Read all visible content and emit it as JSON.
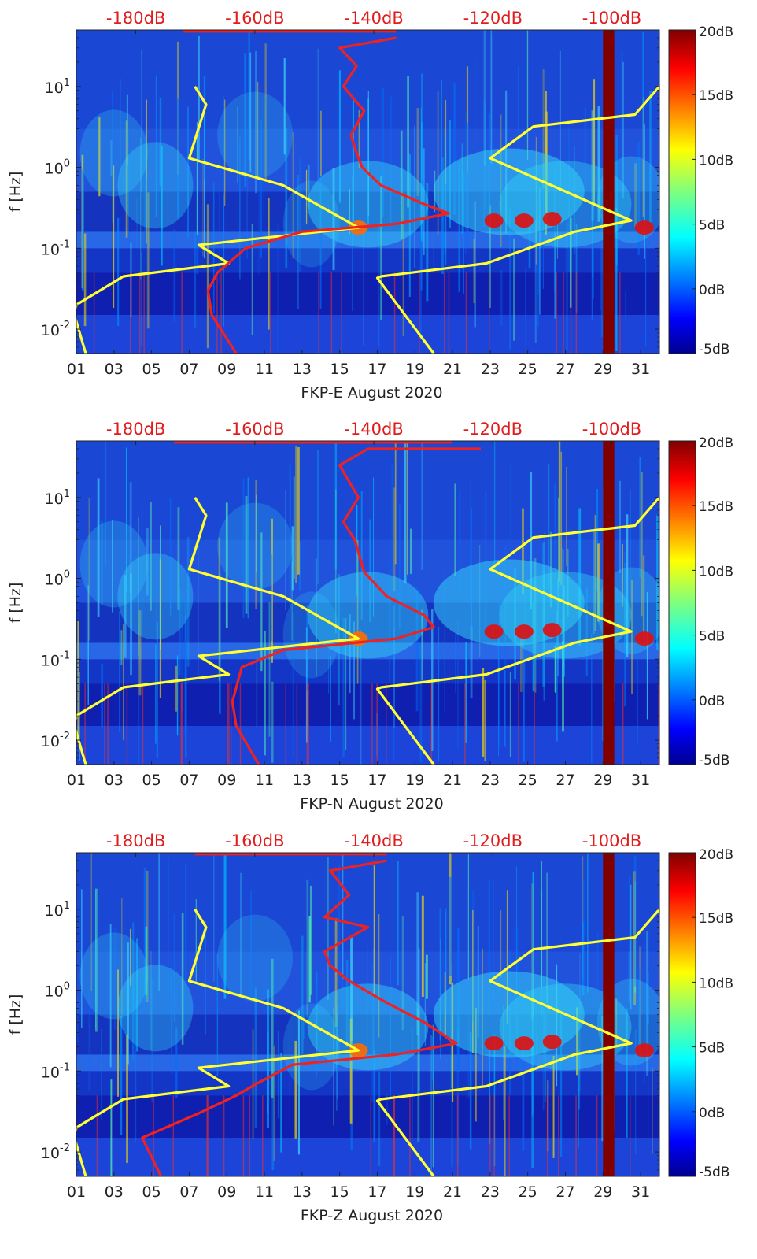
{
  "chart_data": [
    {
      "type": "heatmap",
      "title": "",
      "xlabel": "FKP-E August 2020",
      "ylabel": "f [Hz]",
      "x_ticks": [
        "01",
        "03",
        "05",
        "07",
        "09",
        "11",
        "13",
        "15",
        "17",
        "19",
        "21",
        "23",
        "25",
        "27",
        "29",
        "31"
      ],
      "x_range_days": [
        1,
        32
      ],
      "y_scale": "log",
      "y_ticks": [
        "10^-2",
        "10^-1",
        "10^0",
        "10^1"
      ],
      "y_range_hz": [
        0.005,
        50
      ],
      "top_axis_ticks": [
        "-180dB",
        "-160dB",
        "-140dB",
        "-120dB",
        "-100dB"
      ],
      "top_axis_range_db": [
        -190,
        -92
      ],
      "colorbar": {
        "label_ticks": [
          "20dB",
          "15dB",
          "10dB",
          "5dB",
          "0dB",
          "-5dB"
        ],
        "range": [
          -5,
          20
        ],
        "colormap": "jet"
      },
      "data_gap_days": [
        29.0,
        29.6
      ],
      "series": [
        {
          "color": "#ffff33",
          "points": [
            [
              7.3,
              10
            ],
            [
              7.9,
              6
            ],
            [
              7.0,
              1.3
            ],
            [
              12.0,
              0.6
            ],
            [
              16.0,
              0.18
            ],
            [
              7.5,
              0.11
            ],
            [
              9.1,
              0.065
            ],
            [
              3.5,
              0.045
            ],
            [
              1.0,
              0.02
            ],
            [
              0.9,
              0.015
            ],
            [
              1.5,
              0.005
            ]
          ]
        },
        {
          "color": "#ffff33",
          "points": [
            [
              32,
              10
            ],
            [
              30.7,
              4.5
            ],
            [
              25.3,
              3.2
            ],
            [
              23.0,
              1.3
            ],
            [
              30.5,
              0.22
            ],
            [
              27.5,
              0.16
            ],
            [
              22.8,
              0.065
            ],
            [
              17.2,
              0.045
            ],
            [
              17.0,
              0.043
            ],
            [
              20.0,
              0.005
            ]
          ]
        },
        {
          "color": "#ee2222",
          "points": [
            [
              18,
              40
            ],
            [
              15.0,
              30
            ],
            [
              15.9,
              18
            ],
            [
              15.2,
              10
            ],
            [
              16.3,
              5
            ],
            [
              15.6,
              2.5
            ],
            [
              15.9,
              1.5
            ],
            [
              16.2,
              1.0
            ],
            [
              17.2,
              0.6
            ],
            [
              19.5,
              0.35
            ],
            [
              20.8,
              0.27
            ],
            [
              18.0,
              0.2
            ],
            [
              13.0,
              0.16
            ],
            [
              10.0,
              0.1
            ],
            [
              8.5,
              0.05
            ],
            [
              8.0,
              0.03
            ],
            [
              8.2,
              0.015
            ],
            [
              9.5,
              0.005
            ]
          ]
        },
        {
          "color": "#ee2222",
          "points": [
            [
              6.7,
              48
            ],
            [
              10.5,
              48
            ],
            [
              14.0,
              48
            ],
            [
              18.0,
              48
            ]
          ]
        }
      ]
    },
    {
      "type": "heatmap",
      "title": "",
      "xlabel": "FKP-N August 2020",
      "ylabel": "f [Hz]",
      "x_ticks": [
        "01",
        "03",
        "05",
        "07",
        "09",
        "11",
        "13",
        "15",
        "17",
        "19",
        "21",
        "23",
        "25",
        "27",
        "29",
        "31"
      ],
      "x_range_days": [
        1,
        32
      ],
      "y_scale": "log",
      "y_ticks": [
        "10^-2",
        "10^-1",
        "10^0",
        "10^1"
      ],
      "y_range_hz": [
        0.005,
        50
      ],
      "top_axis_ticks": [
        "-180dB",
        "-160dB",
        "-140dB",
        "-120dB",
        "-100dB"
      ],
      "top_axis_range_db": [
        -190,
        -92
      ],
      "colorbar": {
        "label_ticks": [
          "20dB",
          "15dB",
          "10dB",
          "5dB",
          "0dB",
          "-5dB"
        ],
        "range": [
          -5,
          20
        ],
        "colormap": "jet"
      },
      "data_gap_days": [
        29.0,
        29.6
      ],
      "series": [
        {
          "color": "#ffff33",
          "points": [
            [
              7.3,
              10
            ],
            [
              7.9,
              6
            ],
            [
              7.0,
              1.3
            ],
            [
              12.0,
              0.6
            ],
            [
              16.0,
              0.18
            ],
            [
              7.5,
              0.11
            ],
            [
              9.1,
              0.065
            ],
            [
              3.5,
              0.045
            ],
            [
              1.0,
              0.02
            ],
            [
              0.9,
              0.015
            ],
            [
              1.5,
              0.005
            ]
          ]
        },
        {
          "color": "#ffff33",
          "points": [
            [
              32,
              10
            ],
            [
              30.7,
              4.5
            ],
            [
              25.3,
              3.2
            ],
            [
              23.0,
              1.3
            ],
            [
              30.5,
              0.22
            ],
            [
              27.5,
              0.16
            ],
            [
              22.8,
              0.065
            ],
            [
              17.2,
              0.045
            ],
            [
              17.0,
              0.043
            ],
            [
              20.0,
              0.005
            ]
          ]
        },
        {
          "color": "#ee2222",
          "points": [
            [
              22.5,
              40
            ],
            [
              16.5,
              40
            ],
            [
              15.0,
              25
            ],
            [
              16.0,
              10
            ],
            [
              15.2,
              5
            ],
            [
              15.8,
              3
            ],
            [
              16.3,
              1.2
            ],
            [
              17.5,
              0.6
            ],
            [
              19.5,
              0.35
            ],
            [
              20.0,
              0.25
            ],
            [
              18.0,
              0.18
            ],
            [
              12.0,
              0.13
            ],
            [
              9.8,
              0.08
            ],
            [
              9.3,
              0.03
            ],
            [
              9.5,
              0.015
            ],
            [
              10.7,
              0.005
            ]
          ]
        },
        {
          "color": "#ee2222",
          "points": [
            [
              6.2,
              48
            ],
            [
              10.5,
              48
            ],
            [
              15.0,
              48
            ],
            [
              21.0,
              48
            ]
          ]
        }
      ]
    },
    {
      "type": "heatmap",
      "title": "",
      "xlabel": "FKP-Z August 2020",
      "ylabel": "f [Hz]",
      "x_ticks": [
        "01",
        "03",
        "05",
        "07",
        "09",
        "11",
        "13",
        "15",
        "17",
        "19",
        "21",
        "23",
        "25",
        "27",
        "29",
        "31"
      ],
      "x_range_days": [
        1,
        32
      ],
      "y_scale": "log",
      "y_ticks": [
        "10^-2",
        "10^-1",
        "10^0",
        "10^1"
      ],
      "y_range_hz": [
        0.005,
        50
      ],
      "top_axis_ticks": [
        "-180dB",
        "-160dB",
        "-140dB",
        "-120dB",
        "-100dB"
      ],
      "top_axis_range_db": [
        -190,
        -92
      ],
      "colorbar": {
        "label_ticks": [
          "20dB",
          "15dB",
          "10dB",
          "5dB",
          "0dB",
          "-5dB"
        ],
        "range": [
          -5,
          20
        ],
        "colormap": "jet"
      },
      "data_gap_days": [
        29.0,
        29.6
      ],
      "series": [
        {
          "color": "#ffff33",
          "points": [
            [
              7.3,
              10
            ],
            [
              7.9,
              6
            ],
            [
              7.0,
              1.3
            ],
            [
              12.0,
              0.6
            ],
            [
              16.0,
              0.18
            ],
            [
              7.5,
              0.11
            ],
            [
              9.1,
              0.065
            ],
            [
              3.5,
              0.045
            ],
            [
              1.0,
              0.02
            ],
            [
              0.9,
              0.015
            ],
            [
              1.5,
              0.005
            ]
          ]
        },
        {
          "color": "#ffff33",
          "points": [
            [
              32,
              10
            ],
            [
              30.7,
              4.5
            ],
            [
              25.3,
              3.2
            ],
            [
              23.0,
              1.3
            ],
            [
              30.5,
              0.22
            ],
            [
              27.5,
              0.16
            ],
            [
              22.8,
              0.065
            ],
            [
              17.2,
              0.045
            ],
            [
              17.0,
              0.043
            ],
            [
              20.0,
              0.005
            ]
          ]
        },
        {
          "color": "#ee2222",
          "points": [
            [
              17.5,
              40
            ],
            [
              14.5,
              30
            ],
            [
              15.5,
              15
            ],
            [
              14.2,
              8
            ],
            [
              16.5,
              6
            ],
            [
              14.2,
              3
            ],
            [
              14.5,
              2
            ],
            [
              15.5,
              1.3
            ],
            [
              17.5,
              0.7
            ],
            [
              19.5,
              0.4
            ],
            [
              21.2,
              0.22
            ],
            [
              18.0,
              0.16
            ],
            [
              12.5,
              0.12
            ],
            [
              10.6,
              0.07
            ],
            [
              9.5,
              0.05
            ],
            [
              7.5,
              0.03
            ],
            [
              4.5,
              0.015
            ],
            [
              5.5,
              0.005
            ]
          ]
        },
        {
          "color": "#ee2222",
          "points": [
            [
              7.3,
              48
            ],
            [
              10.5,
              48
            ],
            [
              14.0,
              48
            ],
            [
              17.5,
              48
            ]
          ]
        }
      ]
    }
  ]
}
